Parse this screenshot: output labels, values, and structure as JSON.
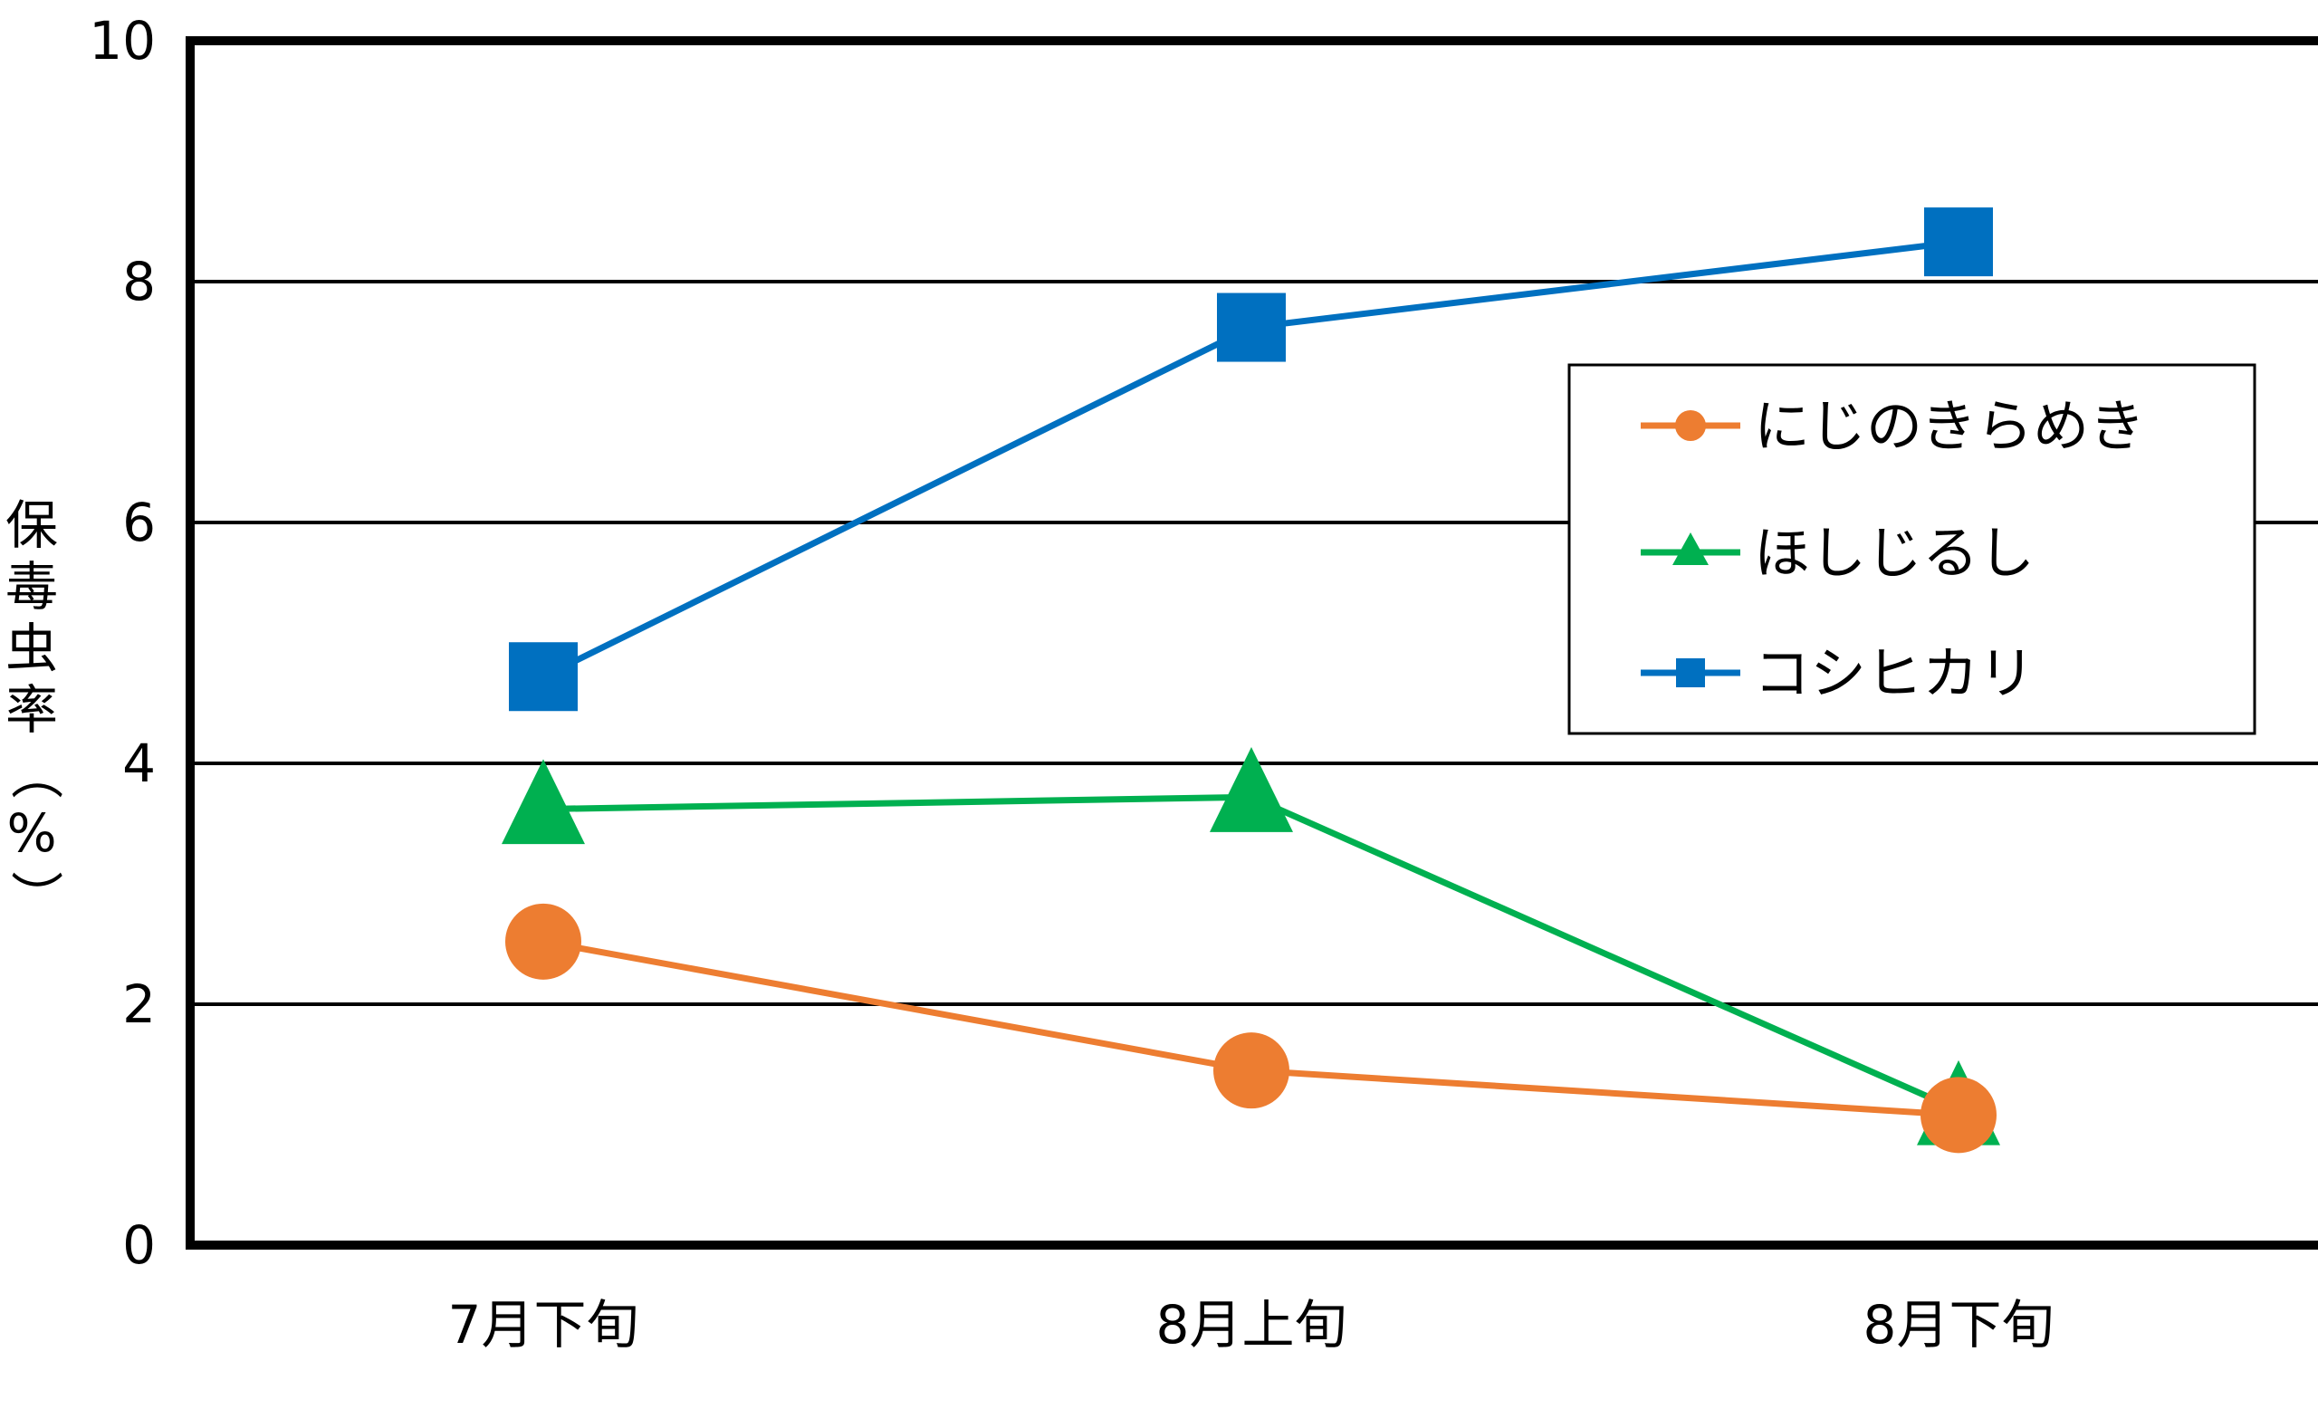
{
  "chart_data": {
    "type": "line",
    "title": "",
    "xlabel": "",
    "ylabel": "保毒虫率（%）",
    "categories": [
      "7月下旬",
      "8月上旬",
      "8月下旬"
    ],
    "ylim": [
      0,
      10
    ],
    "yticks": [
      0,
      2,
      4,
      6,
      8,
      10
    ],
    "grid": true,
    "legend": "upper-right",
    "series": [
      {
        "name": "にじのきらめき",
        "values": [
          2.52,
          1.45,
          1.08
        ],
        "color": "#ED7D31",
        "marker": "circle"
      },
      {
        "name": "ほしじるし",
        "values": [
          3.62,
          3.72,
          1.12
        ],
        "color": "#00B050",
        "marker": "triangle"
      },
      {
        "name": "コシヒカリ",
        "values": [
          4.72,
          7.62,
          8.33
        ],
        "color": "#0070C0",
        "marker": "square"
      }
    ]
  }
}
